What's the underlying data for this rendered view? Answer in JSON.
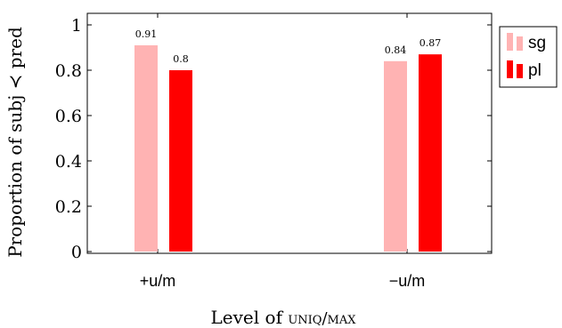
{
  "chart_data": {
    "type": "bar",
    "categories": [
      "+u/m",
      "−u/m"
    ],
    "series": [
      {
        "name": "sg",
        "values": [
          0.91,
          0.84
        ],
        "value_labels": [
          "0.91",
          "0.84"
        ],
        "color": "#ffb3b3"
      },
      {
        "name": "pl",
        "values": [
          0.8,
          0.87
        ],
        "value_labels": [
          "0.8",
          "0.87"
        ],
        "color": "#ff0000"
      }
    ],
    "xlabel_main": "Level of ",
    "xlabel_smallcaps": "uniq/max",
    "ylabel": "Proportion of subj ≺ pred",
    "ylim": [
      0,
      1
    ],
    "yticks": [
      0,
      0.2,
      0.4,
      0.6,
      0.8,
      1
    ],
    "ytick_labels": [
      "0",
      "0.2",
      "0.4",
      "0.6",
      "0.8",
      "1"
    ],
    "legend_position": "outside-top-right",
    "grid": false
  }
}
